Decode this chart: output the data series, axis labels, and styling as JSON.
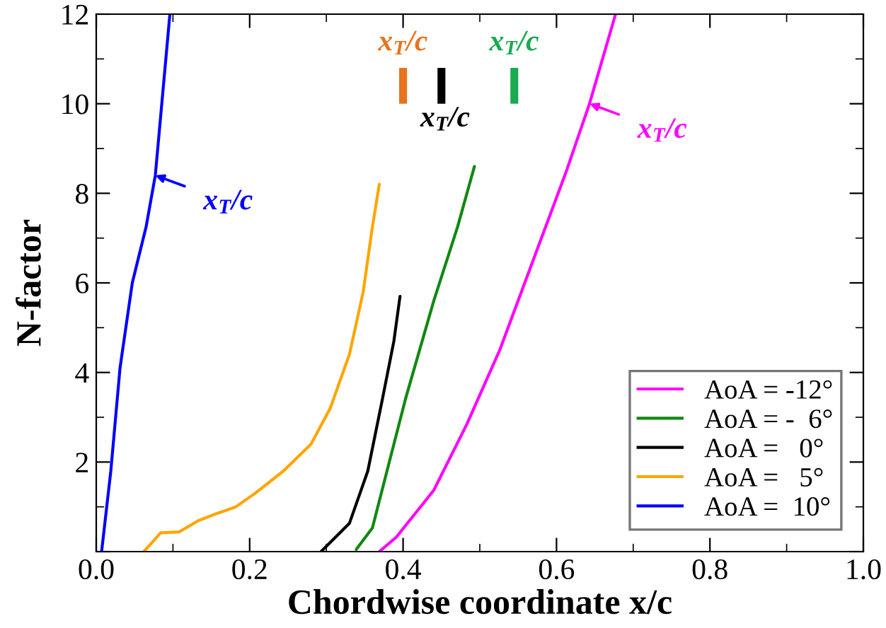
{
  "chart_data": {
    "type": "line",
    "xlabel": "Chordwise coordinate x/c",
    "ylabel": "N-factor",
    "xlim": [
      0,
      1
    ],
    "ylim": [
      0,
      12
    ],
    "xticks": [
      {
        "value": 0,
        "label": "0.0"
      },
      0.2,
      0.4,
      0.6,
      0.8,
      {
        "value": 1,
        "label": "1.0"
      }
    ],
    "yticks": [
      {
        "value": 0,
        "label": null
      },
      2,
      4,
      6,
      8,
      10,
      12
    ],
    "grid": false,
    "legend": "bottom right",
    "marker": "none",
    "line_style": "solid",
    "series": [
      {
        "name": "AoA = -12°",
        "color": "#ff00ff",
        "x": [
          0.369,
          0.391,
          0.44,
          0.483,
          0.526,
          0.576,
          0.613,
          0.643,
          0.677
        ],
        "values": [
          0,
          0.32,
          1.37,
          2.84,
          4.5,
          6.8,
          8.5,
          10.0,
          12
        ]
      },
      {
        "name": "AoA = -  6°",
        "color": "#118811",
        "x": [
          0.339,
          0.36,
          0.379,
          0.403,
          0.44,
          0.471,
          0.493
        ],
        "values": [
          0.05,
          0.53,
          1.8,
          3.4,
          5.6,
          7.25,
          8.6
        ]
      },
      {
        "name": "AoA =   0°",
        "color": "#000000",
        "x": [
          0.293,
          0.33,
          0.354,
          0.373,
          0.388,
          0.396
        ],
        "values": [
          0,
          0.63,
          1.8,
          3.4,
          4.7,
          5.7
        ]
      },
      {
        "name": "AoA =   5°",
        "color": "#ffa500",
        "x": [
          0.062,
          0.084,
          0.108,
          0.133,
          0.157,
          0.182,
          0.207,
          0.244,
          0.28,
          0.305,
          0.33,
          0.348,
          0.36,
          0.369
        ],
        "values": [
          0,
          0.42,
          0.44,
          0.69,
          0.85,
          1.0,
          1.3,
          1.8,
          2.4,
          3.2,
          4.4,
          5.8,
          7.25,
          8.2
        ]
      },
      {
        "name": "AoA =  10°",
        "color": "#0000ff",
        "x": [
          0.007,
          0.019,
          0.031,
          0.047,
          0.065,
          0.077,
          0.096
        ],
        "values": [
          0,
          1.8,
          4.1,
          6.0,
          7.25,
          8.4,
          12
        ]
      },
      {
        "color": "#e8731c",
        "x": [
          0.4,
          0.4
        ],
        "values": [
          10.0,
          10.8
        ]
      },
      {
        "color": "#000000",
        "x": [
          0.45,
          0.45
        ],
        "values": [
          10.0,
          10.8
        ]
      },
      {
        "color": "#1aaa50",
        "x": [
          0.545,
          0.545
        ],
        "values": [
          10.0,
          10.8
        ]
      }
    ],
    "annotations": [
      {
        "text": "x$_{T}$/c",
        "x": 0.077,
        "y": 8.4
      },
      {
        "text": "x$_{T}$/c",
        "x": 0.643,
        "y": 10.0
      },
      {
        "text": "x$_{T}$/c",
        "x": 0.4,
        "y": 10.8
      },
      {
        "text": "x$_{T}$/c",
        "x": 0.45,
        "y": 10.0
      },
      {
        "text": "x$_{T}$/c",
        "x": 0.545,
        "y": 10.8
      }
    ]
  }
}
